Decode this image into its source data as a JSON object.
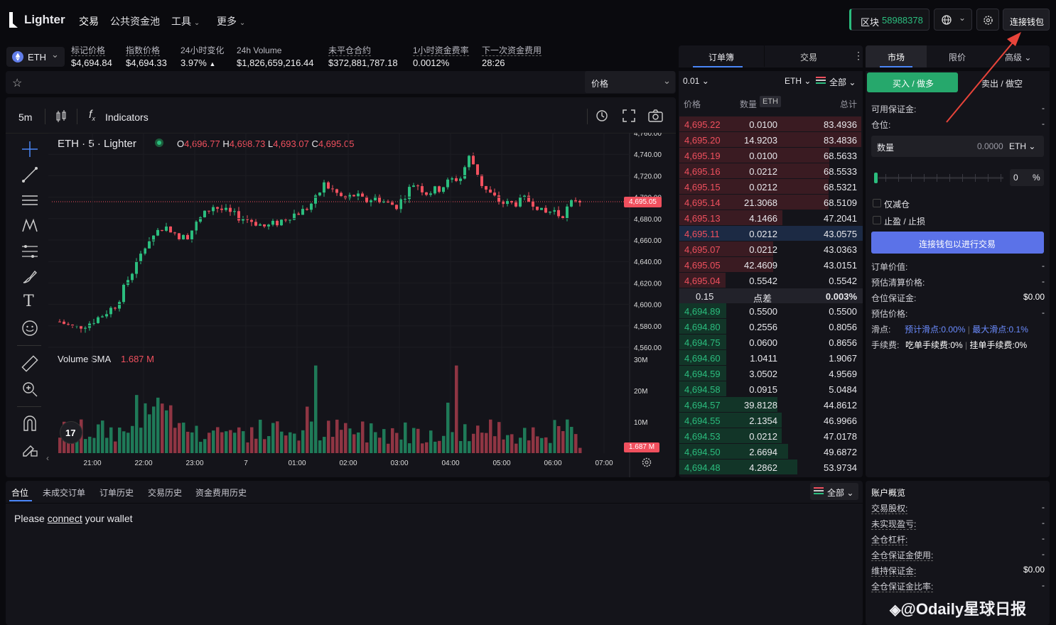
{
  "topbar": {
    "brand": "Lighter",
    "nav": [
      "交易",
      "公共资金池",
      "工具",
      "更多"
    ],
    "block_label": "区块",
    "block_number": "58988378",
    "connect_label": "连接钱包"
  },
  "ticker": {
    "asset": "ETH",
    "stats": [
      {
        "label": "标记价格",
        "value": "$4,694.84"
      },
      {
        "label": "指数价格",
        "value": "$4,694.33"
      },
      {
        "label": "24小时变化",
        "value": "3.97%"
      },
      {
        "label": "24h Volume",
        "value": "$1,826,659,216.44"
      },
      {
        "label": "未平仓合约",
        "value": "$372,881,787.18"
      },
      {
        "label": "1小时资金费率",
        "value": "0.0012%"
      },
      {
        "label": "下一次资金费用",
        "value": "28:26"
      }
    ]
  },
  "chart": {
    "price_select": "价格",
    "interval": "5m",
    "indicators_label": "Indicators",
    "symbol": "ETH · 5 · Lighter",
    "ohlc": {
      "o_label": "O",
      "o": "4,696.77",
      "h_label": "H",
      "h": "4,698.73",
      "l_label": "L",
      "l": "4,693.07",
      "c_label": "C",
      "c": "4,695.05"
    },
    "price_ticks": [
      "4,760.00",
      "4,740.00",
      "4,720.00",
      "4,700.00",
      "4,680.00",
      "4,660.00",
      "4,640.00",
      "4,620.00",
      "4,600.00",
      "4,580.00",
      "4,560.00"
    ],
    "current_price": "4,695.05",
    "volume_label": "Volume SMA",
    "volume_value": "1.687 M",
    "volume_ticks": [
      "30M",
      "20M",
      "10M"
    ],
    "volume_tag": "1.687 M",
    "time_ticks": [
      "21:00",
      "22:00",
      "23:00",
      "7",
      "01:00",
      "02:00",
      "03:00",
      "04:00",
      "05:00",
      "06:00",
      "07:00"
    ],
    "colors": {
      "up": "#2bbd7e",
      "down": "#f0505e"
    }
  },
  "chart_data": {
    "type": "candlestick",
    "series": [
      {
        "name": "ETH",
        "x_range": [
          "20:40",
          "06:50"
        ]
      }
    ],
    "ylim": [
      4560,
      4760
    ],
    "last_close": 4695.05,
    "volume_last": "1.687 M"
  },
  "orderbook": {
    "tabs": [
      "订单簿",
      "交易"
    ],
    "tick": "0.01",
    "unit": "ETH",
    "filter": "全部",
    "headers": {
      "price": "价格",
      "qty": "数量",
      "qty_unit": "ETH",
      "total": "总计"
    },
    "asks": [
      [
        "4,695.22",
        "0.0100",
        "83.4936"
      ],
      [
        "4,695.20",
        "14.9203",
        "83.4836"
      ],
      [
        "4,695.19",
        "0.0100",
        "68.5633"
      ],
      [
        "4,695.16",
        "0.0212",
        "68.5533"
      ],
      [
        "4,695.15",
        "0.0212",
        "68.5321"
      ],
      [
        "4,695.14",
        "21.3068",
        "68.5109"
      ],
      [
        "4,695.13",
        "4.1466",
        "47.2041"
      ],
      [
        "4,695.11",
        "0.0212",
        "43.0575"
      ],
      [
        "4,695.07",
        "0.0212",
        "43.0363"
      ],
      [
        "4,695.05",
        "42.4609",
        "43.0151"
      ],
      [
        "4,695.04",
        "0.5542",
        "0.5542"
      ]
    ],
    "spread": {
      "value": "0.15",
      "label": "点差",
      "pct": "0.003%"
    },
    "bids": [
      [
        "4,694.89",
        "0.5500",
        "0.5500"
      ],
      [
        "4,694.80",
        "0.2556",
        "0.8056"
      ],
      [
        "4,694.75",
        "0.0600",
        "0.8656"
      ],
      [
        "4,694.60",
        "1.0411",
        "1.9067"
      ],
      [
        "4,694.59",
        "3.0502",
        "4.9569"
      ],
      [
        "4,694.58",
        "0.0915",
        "5.0484"
      ],
      [
        "4,694.57",
        "39.8128",
        "44.8612"
      ],
      [
        "4,694.55",
        "2.1354",
        "46.9966"
      ],
      [
        "4,694.53",
        "0.0212",
        "47.0178"
      ],
      [
        "4,694.50",
        "2.6694",
        "49.6872"
      ],
      [
        "4,694.48",
        "4.2862",
        "53.9734"
      ]
    ]
  },
  "trade": {
    "tabs": [
      "市场",
      "限价",
      "高级"
    ],
    "buy": "买入 / 做多",
    "sell": "卖出 / 做空",
    "available": "可用保证金:",
    "position": "仓位:",
    "dash": "-",
    "qty_label": "数量",
    "qty_value": "0.0000",
    "qty_unit": "ETH",
    "slider_value": "0",
    "pct": "%",
    "reduce_only": "仅减仓",
    "tp_sl": "止盈 / 止损",
    "connect_trade": "连接钱包以进行交易",
    "order_value": "订单价值:",
    "liq_price": "预估清算价格:",
    "pos_margin": "仓位保证金:",
    "pos_margin_value": "$0.00",
    "est_price": "预估价格:",
    "slippage": "滑点:",
    "slip_est": "预计滑点:",
    "slip_est_v": "0.00%",
    "slip_max": "最大滑点:",
    "slip_max_v": "0.1%",
    "fee": "手续费:",
    "taker": "吃单手续费:",
    "taker_v": "0%",
    "maker": "挂单手续费:",
    "maker_v": "0%"
  },
  "bottom": {
    "tabs": [
      "合位",
      "未成交订单",
      "订单历史",
      "交易历史",
      "资金费用历史"
    ],
    "filter": "全部",
    "msg_pre": "Please ",
    "msg_link": "connect",
    "msg_post": " your wallet"
  },
  "account": {
    "title": "账户概览",
    "rows": [
      [
        "交易股权:",
        "-"
      ],
      [
        "未实现盈亏:",
        "-"
      ],
      [
        "全仓杠杆:",
        "-"
      ],
      [
        "全仓保证金使用:",
        "-"
      ],
      [
        "维持保证金:",
        "$0.00"
      ],
      [
        "全仓保证金比率:",
        "-"
      ]
    ]
  },
  "watermark": "@Odaily星球日报"
}
